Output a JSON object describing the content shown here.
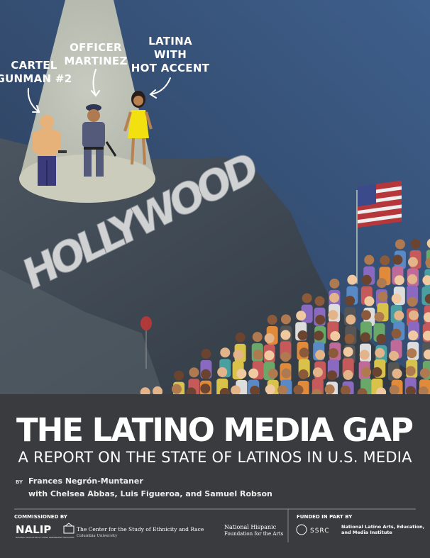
{
  "illustration": {
    "labels": [
      {
        "lines": [
          "CARTEL",
          "GUNMAN #2"
        ]
      },
      {
        "lines": [
          "OFFICER",
          "MARTINEZ"
        ]
      },
      {
        "lines": [
          "LATINA",
          "WITH",
          "HOT ACCENT"
        ]
      }
    ],
    "sign": "HOLLYWOOD"
  },
  "title": "THE LATINO MEDIA GAP",
  "subtitle": "A REPORT ON THE STATE OF LATINOS IN U.S. MEDIA",
  "byline": {
    "by": "BY",
    "author": "Frances Negrón-Muntaner",
    "coauthors": "with Chelsea Abbas, Luis Figueroa, and Samuel Robson"
  },
  "footer": {
    "commissioned_label": "COMMISSIONED BY",
    "nalip": {
      "name": "NALIP",
      "full": "NATIONAL ASSOCIATION OF LATINO INDEPENDENT PRODUCERS"
    },
    "columbia": {
      "name": "The Center for the Study of Ethnicity and Race",
      "university": "Columbia University"
    },
    "nhfa": {
      "line1": "National Hispanic",
      "line2": "Foundation for the Arts"
    },
    "funded_label": "FUNDED IN PART BY",
    "ssrc": "SSRC",
    "nlaemi": {
      "line1": "National Latino Arts, Education,",
      "line2": "and Media Institute"
    }
  }
}
